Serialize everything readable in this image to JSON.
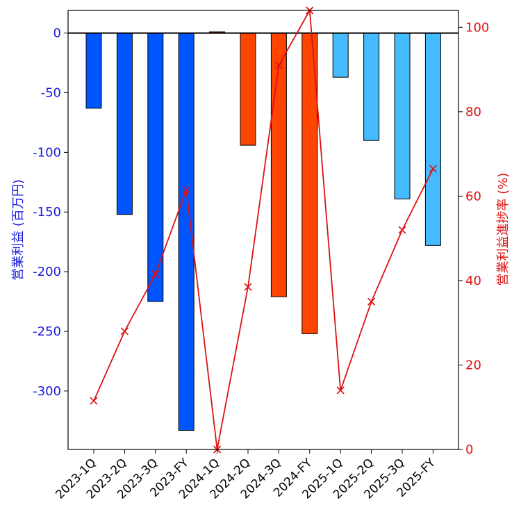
{
  "chart_data": {
    "type": "bar",
    "categories": [
      "2023-1Q",
      "2023-2Q",
      "2023-3Q",
      "2023-FY",
      "2024-1Q",
      "2024-2Q",
      "2024-3Q",
      "2024-FY",
      "2025-1Q",
      "2025-2Q",
      "2025-3Q",
      "2025-FY"
    ],
    "series": [
      {
        "type": "bar",
        "axis": "left",
        "values": [
          -63,
          -152,
          -225,
          -333,
          1,
          -94,
          -221,
          -252,
          -37,
          -90,
          -139,
          -178
        ],
        "colors": [
          "#0055ff",
          "#0055ff",
          "#0055ff",
          "#0055ff",
          "#ff4400",
          "#ff4400",
          "#ff4400",
          "#ff4400",
          "#44bbff",
          "#44bbff",
          "#44bbff",
          "#44bbff"
        ]
      },
      {
        "type": "line",
        "axis": "right",
        "color": "#dd1111",
        "marker": "x",
        "values": [
          11.5,
          28,
          41.5,
          61.5,
          0,
          38.5,
          91,
          104,
          14,
          35,
          52,
          66.5
        ]
      }
    ],
    "ylabel": "営業利益 (百万円)",
    "y2label": "営業利益進捗率 (%)",
    "ylim": [
      -349,
      19
    ],
    "y2lim": [
      0,
      104
    ],
    "yticks": [
      0,
      -50,
      -100,
      -150,
      -200,
      -250,
      -300
    ],
    "y2ticks": [
      0,
      20,
      40,
      60,
      80,
      100
    ],
    "ytick_labels": [
      "0",
      "-50",
      "-100",
      "-150",
      "-200",
      "-250",
      "-300"
    ],
    "y2tick_labels": [
      "0",
      "20",
      "40",
      "60",
      "80",
      "100"
    ],
    "grid": false,
    "zero_line": true
  }
}
